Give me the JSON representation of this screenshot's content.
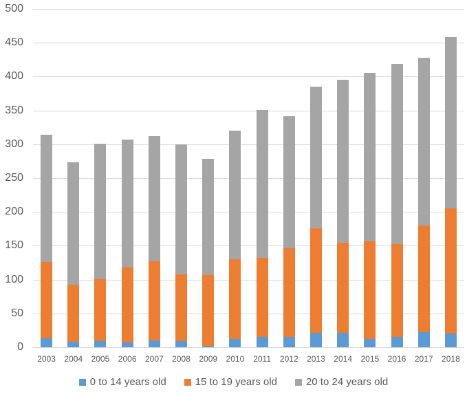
{
  "chart_data": {
    "type": "bar",
    "stacked": true,
    "title": "",
    "xlabel": "",
    "ylabel": "",
    "ylim": [
      0,
      500
    ],
    "ytick_step": 50,
    "grid": true,
    "legend_position": "bottom",
    "gridline_color": "#D9D9D9",
    "axis_text_color": "#595959",
    "background_color": "#ffffff",
    "categories": [
      "2003",
      "2004",
      "2005",
      "2006",
      "2007",
      "2008",
      "2009",
      "2010",
      "2011",
      "2012",
      "2013",
      "2014",
      "2015",
      "2016",
      "2017",
      "2018"
    ],
    "series": [
      {
        "name": "0 to 14 years old",
        "color": "#5B9BD5",
        "values": [
          13,
          8,
          9,
          7,
          10,
          9,
          2,
          12,
          15,
          15,
          21,
          21,
          12,
          15,
          22,
          20
        ]
      },
      {
        "name": "15 to 19 years old",
        "color": "#ED7D31",
        "values": [
          113,
          85,
          92,
          111,
          117,
          99,
          105,
          118,
          117,
          131,
          155,
          134,
          145,
          137,
          158,
          185
        ]
      },
      {
        "name": "20 to 24 years old",
        "color": "#A5A5A5",
        "values": [
          188,
          180,
          200,
          189,
          185,
          192,
          172,
          190,
          219,
          196,
          209,
          240,
          249,
          267,
          248,
          253
        ]
      }
    ],
    "stack_totals": [
      314,
      273,
      301,
      307,
      312,
      300,
      279,
      320,
      351,
      342,
      385,
      395,
      406,
      419,
      428,
      458
    ]
  }
}
